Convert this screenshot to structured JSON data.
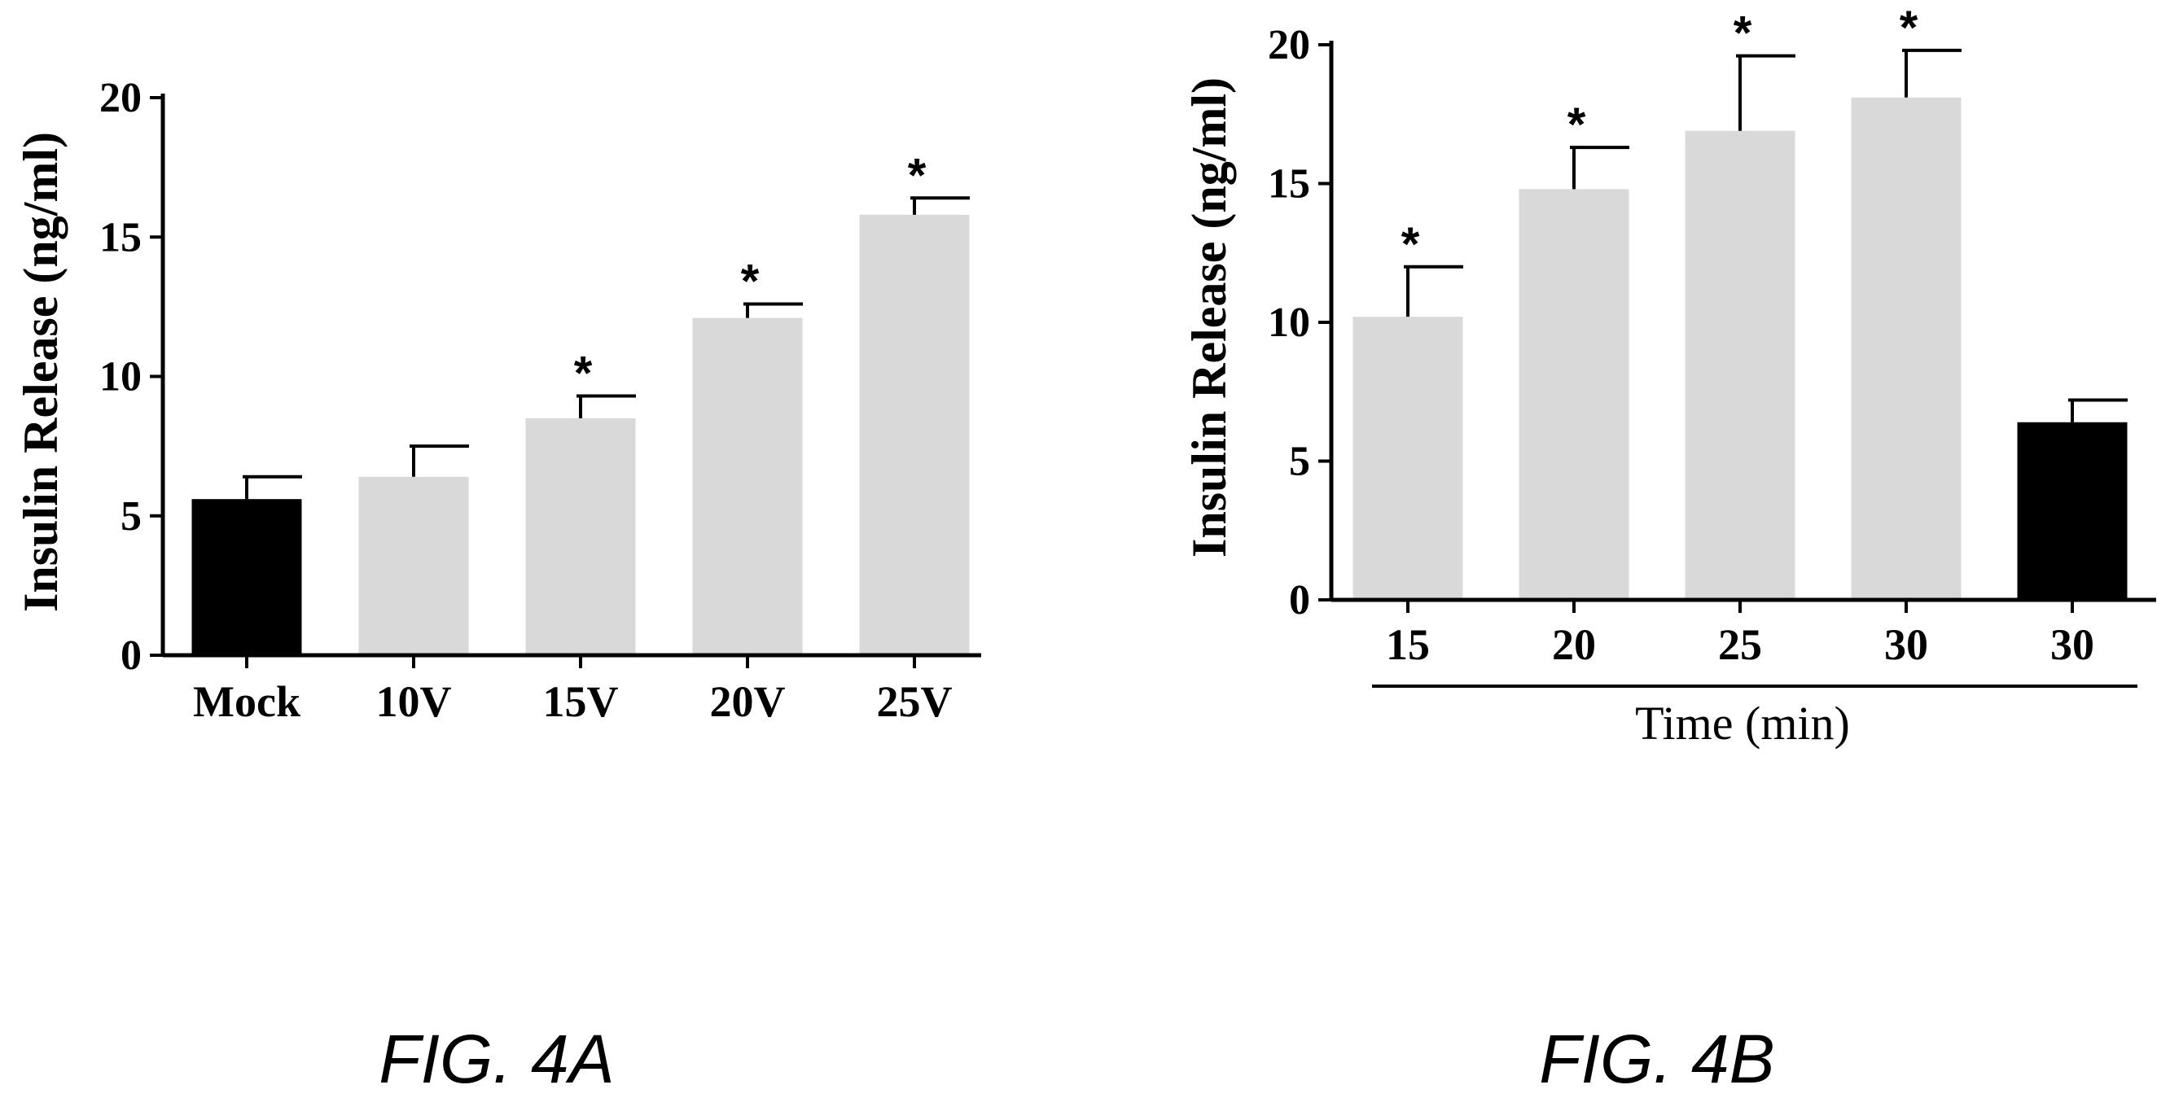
{
  "chart_data": [
    {
      "type": "bar",
      "caption": "FIG. 4A",
      "ylabel": "Insulin Release  (ng/ml)",
      "xlabel": "",
      "ylim": [
        0,
        20
      ],
      "yticks": [
        0,
        5,
        10,
        15,
        20
      ],
      "categories": [
        "Mock",
        "10V",
        "15V",
        "20V",
        "25V"
      ],
      "values": [
        5.6,
        6.4,
        8.5,
        12.1,
        15.8
      ],
      "errors": [
        0.8,
        1.1,
        0.8,
        0.5,
        0.6
      ],
      "significance": [
        "",
        "",
        "*",
        "*",
        "*"
      ],
      "bar_colors": [
        "#000000",
        "#d9d9d9",
        "#d9d9d9",
        "#d9d9d9",
        "#d9d9d9"
      ],
      "grid": false
    },
    {
      "type": "bar",
      "caption": "FIG. 4B",
      "ylabel": "Insulin Release  (ng/ml)",
      "xlabel": "Time (min)",
      "ylim": [
        0,
        20
      ],
      "yticks": [
        0,
        5,
        10,
        15,
        20
      ],
      "categories": [
        "15",
        "20",
        "25",
        "30",
        "30"
      ],
      "values": [
        10.2,
        14.8,
        16.9,
        18.1,
        6.4
      ],
      "errors": [
        1.8,
        1.5,
        2.7,
        1.7,
        0.8
      ],
      "significance": [
        "*",
        "*",
        "*",
        "*",
        ""
      ],
      "bar_colors": [
        "#d9d9d9",
        "#d9d9d9",
        "#d9d9d9",
        "#d9d9d9",
        "#000000"
      ],
      "grid": false
    }
  ]
}
